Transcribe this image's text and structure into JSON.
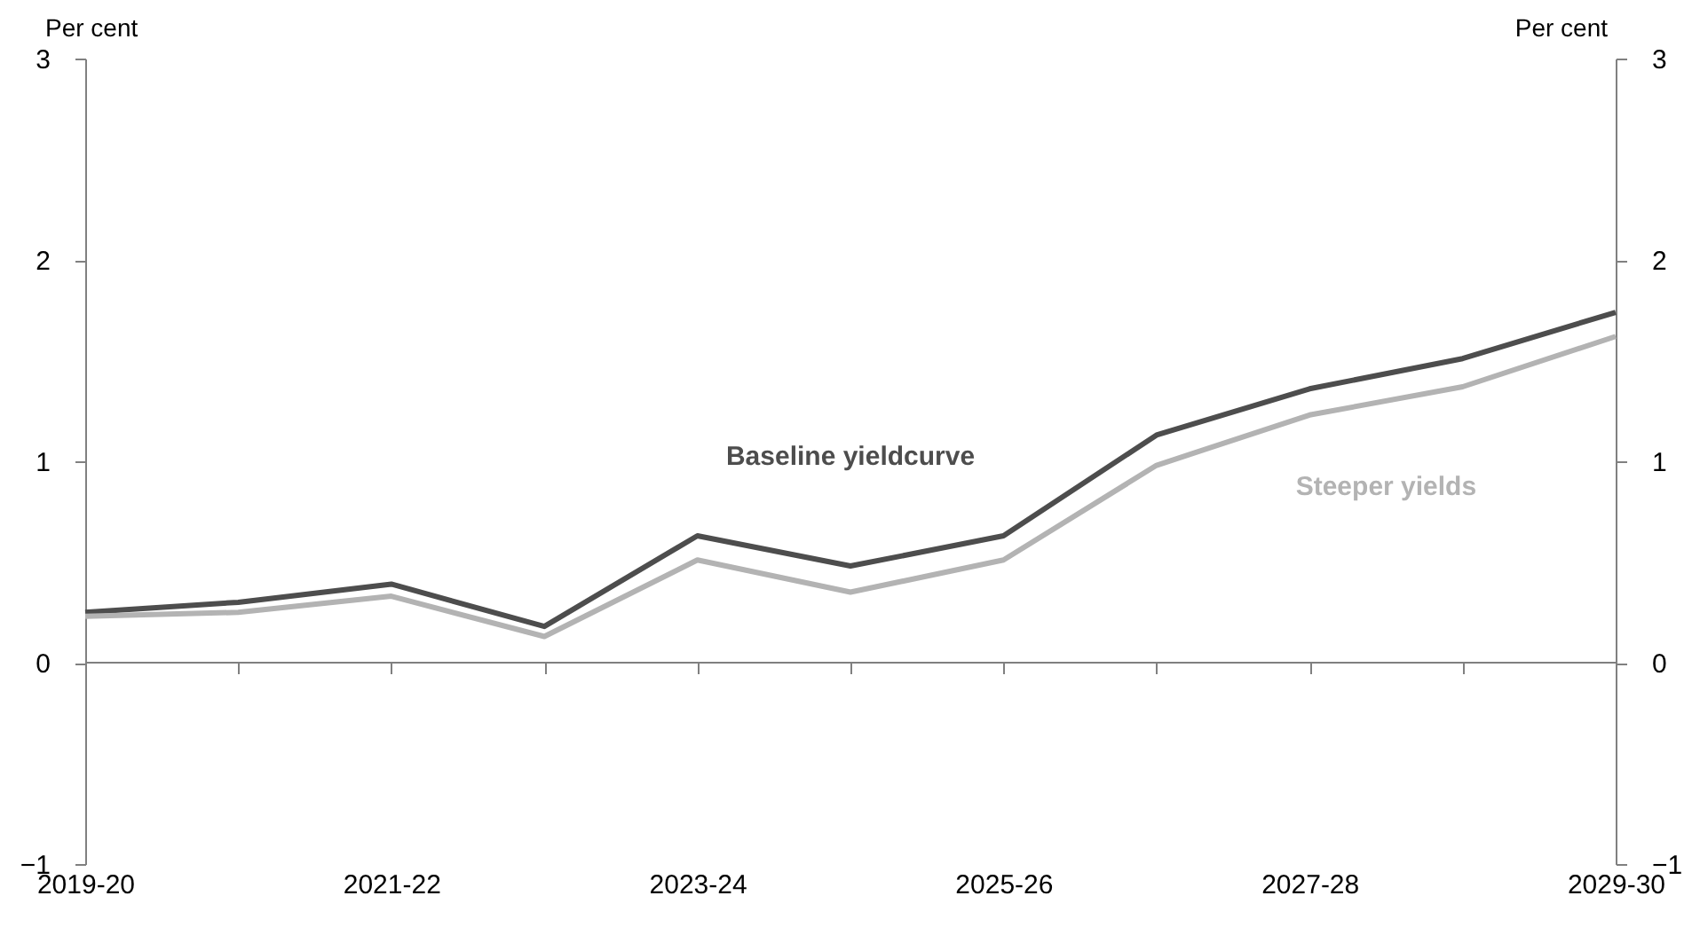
{
  "chart_data": {
    "type": "line",
    "ylabel": "Per cent",
    "y2label": "Per cent",
    "categories": [
      "2019-20",
      null,
      "2021-22",
      null,
      "2023-24",
      null,
      "2025-26",
      null,
      "2027-28",
      null,
      "2029-30"
    ],
    "series": [
      {
        "name": "Baseline yieldcurve",
        "color": "#4d4d4d",
        "values": [
          0.25,
          0.3,
          0.39,
          0.18,
          0.63,
          0.48,
          0.63,
          1.13,
          1.36,
          1.51,
          1.74
        ]
      },
      {
        "name": "Steeper yields",
        "color": "#b3b3b3",
        "values": [
          0.23,
          0.25,
          0.33,
          0.13,
          0.51,
          0.35,
          0.51,
          0.98,
          1.23,
          1.37,
          1.62
        ]
      }
    ],
    "ylim": [
      -1,
      3
    ],
    "yticks": [
      -1,
      0,
      1,
      2,
      3
    ],
    "y2lim": [
      -1,
      3
    ],
    "y2ticks": [
      -1,
      0,
      1,
      2,
      3
    ],
    "ref_lines": [
      {
        "axis": "y",
        "value": 0,
        "color": "#808080"
      }
    ],
    "grid": false,
    "legend": false,
    "marker": "none",
    "line_style": "solid"
  }
}
